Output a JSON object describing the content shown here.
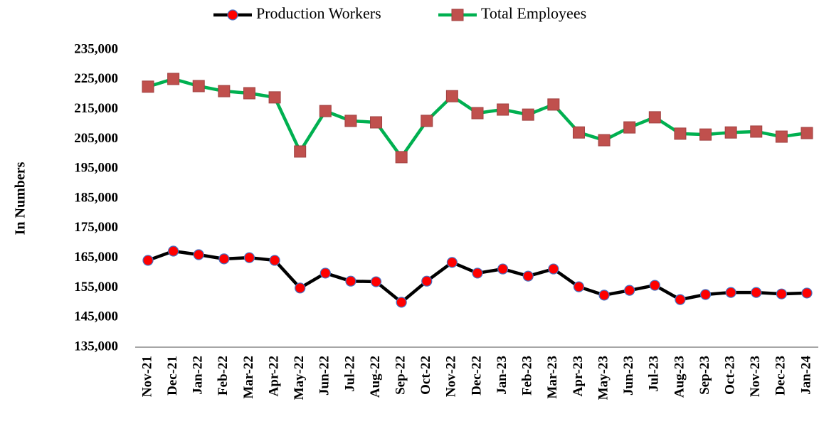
{
  "chart_data": {
    "type": "line",
    "y_label": "In Numbers",
    "categories": [
      "Nov-21",
      "Dec-21",
      "Jan-22",
      "Feb-22",
      "Mar-22",
      "Apr-22",
      "May-22",
      "Jun-22",
      "Jul-22",
      "Aug-22",
      "Sep-22",
      "Oct-22",
      "Nov-22",
      "Dec-22",
      "Jan-23",
      "Feb-23",
      "Mar-23",
      "Apr-23",
      "May-23",
      "Jun-23",
      "Jul-23",
      "Aug-23",
      "Sep-23",
      "Oct-23",
      "Nov-23",
      "Dec-23",
      "Jan-24"
    ],
    "series": [
      {
        "name": "Production Workers",
        "color": "#000000",
        "marker_color": "#ff0000",
        "marker": "circle",
        "values": [
          164200,
          167300,
          166100,
          164700,
          165100,
          164200,
          154900,
          159900,
          157200,
          157000,
          150100,
          157200,
          163500,
          159900,
          161300,
          158900,
          161300,
          155300,
          152500,
          154100,
          155800,
          151000,
          152700,
          153400,
          153400,
          152900,
          153200
        ]
      },
      {
        "name": "Total Employees",
        "color": "#00b050",
        "marker_color": "#c0504d",
        "marker": "square",
        "values": [
          222600,
          225200,
          222800,
          221100,
          220400,
          219000,
          200800,
          214400,
          211100,
          210600,
          198900,
          211100,
          219400,
          213700,
          214900,
          213200,
          216600,
          207200,
          204600,
          208900,
          212300,
          206800,
          206500,
          207200,
          207500,
          205800,
          207000
        ]
      }
    ],
    "ylim": [
      135000,
      235000
    ],
    "yticks": [
      {
        "value": 135000,
        "label": "135,000"
      },
      {
        "value": 145000,
        "label": "145,000"
      },
      {
        "value": 155000,
        "label": "155,000"
      },
      {
        "value": 165000,
        "label": "165,000"
      },
      {
        "value": 175000,
        "label": "175,000"
      },
      {
        "value": 185000,
        "label": "185,000"
      },
      {
        "value": 195000,
        "label": "195,000"
      },
      {
        "value": 205000,
        "label": "205,000"
      },
      {
        "value": 215000,
        "label": "215,000"
      },
      {
        "value": 225000,
        "label": "225,000"
      },
      {
        "value": 235000,
        "label": "235,000"
      }
    ],
    "legend": "top"
  }
}
